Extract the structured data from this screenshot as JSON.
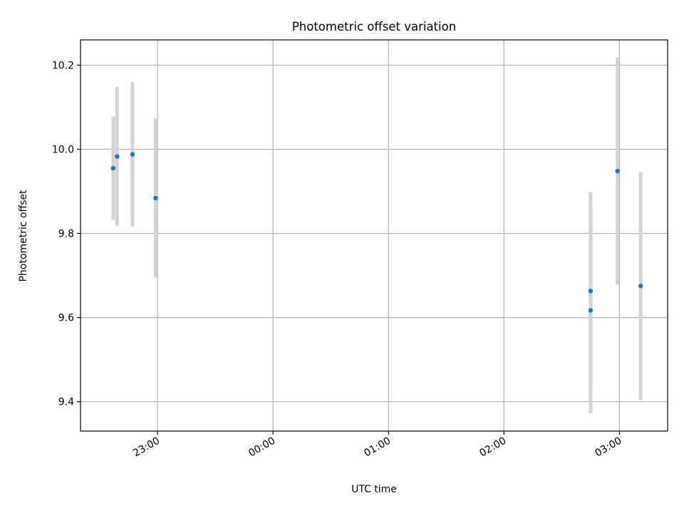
{
  "chart_data": {
    "type": "scatter",
    "title": "Photometric offset variation",
    "xlabel": "UTC time",
    "ylabel": "Photometric offset",
    "xlim": [
      "22:20",
      "03:25"
    ],
    "ylim": [
      9.33,
      10.26
    ],
    "grid": true,
    "x_ticks": [
      "23:00",
      "00:00",
      "01:00",
      "02:00",
      "03:00"
    ],
    "y_ticks": [
      "9.4",
      "9.6",
      "9.8",
      "10.0",
      "10.2"
    ],
    "point_color": "#1f77b4",
    "errorbar_color": "#d3d3d3",
    "points": [
      {
        "x": "22:37",
        "y": 9.955,
        "ylow": 9.832,
        "yhigh": 10.078
      },
      {
        "x": "22:39",
        "y": 9.983,
        "ylow": 9.818,
        "yhigh": 10.148
      },
      {
        "x": "22:47",
        "y": 9.988,
        "ylow": 9.816,
        "yhigh": 10.16
      },
      {
        "x": "22:59",
        "y": 9.884,
        "ylow": 9.695,
        "yhigh": 10.073
      },
      {
        "x": "02:45",
        "y": 9.663,
        "ylow": 9.428,
        "yhigh": 9.898
      },
      {
        "x": "02:45",
        "y": 9.617,
        "ylow": 9.372,
        "yhigh": 9.862
      },
      {
        "x": "02:59",
        "y": 9.948,
        "ylow": 9.678,
        "yhigh": 10.218
      },
      {
        "x": "03:11",
        "y": 9.675,
        "ylow": 9.404,
        "yhigh": 9.946
      }
    ]
  }
}
